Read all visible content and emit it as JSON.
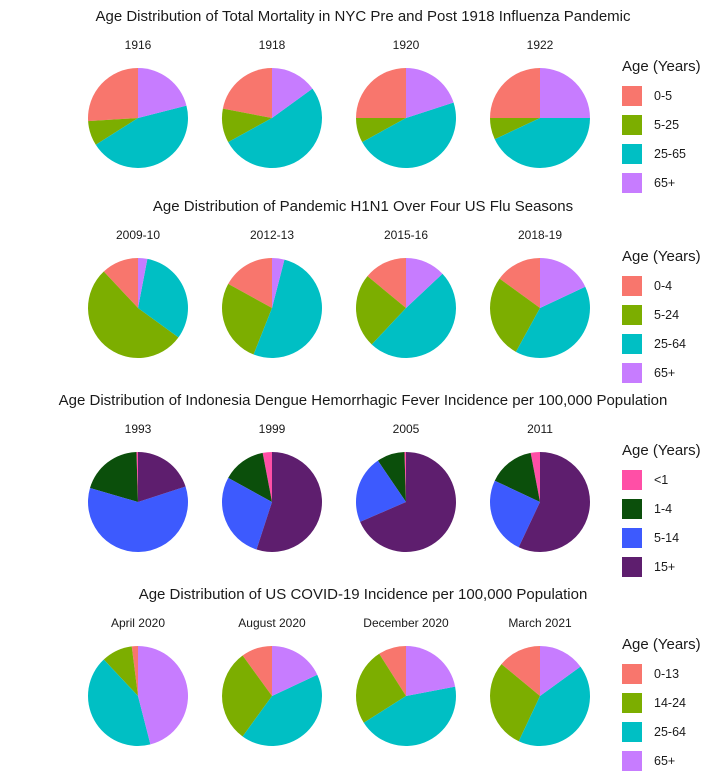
{
  "chart_data": [
    {
      "type": "pie",
      "title": "Age Distribution of Total Mortality in NYC Pre and Post 1918 Influenza Pandemic",
      "legend_title": "Age (Years)",
      "categories": [
        "0-5",
        "5-25",
        "25-65",
        "65+"
      ],
      "colors": [
        "#F8766D",
        "#7CAE00",
        "#00BFC4",
        "#C77CFF"
      ],
      "legend_position": "right",
      "pies": [
        {
          "label": "1916",
          "values": [
            26,
            8,
            45,
            21
          ]
        },
        {
          "label": "1918",
          "values": [
            22,
            11,
            52,
            15
          ]
        },
        {
          "label": "1920",
          "values": [
            25,
            8,
            47,
            20
          ]
        },
        {
          "label": "1922",
          "values": [
            25,
            7,
            43,
            25
          ]
        }
      ]
    },
    {
      "type": "pie",
      "title": "Age Distribution of Pandemic H1N1 Over Four US Flu Seasons",
      "legend_title": "Age (Years)",
      "categories": [
        "0-4",
        "5-24",
        "25-64",
        "65+"
      ],
      "colors": [
        "#F8766D",
        "#7CAE00",
        "#00BFC4",
        "#C77CFF"
      ],
      "legend_position": "right",
      "pies": [
        {
          "label": "2009-10",
          "values": [
            12,
            53,
            32,
            3
          ]
        },
        {
          "label": "2012-13",
          "values": [
            17,
            27,
            52,
            4
          ]
        },
        {
          "label": "2015-16",
          "values": [
            14,
            24,
            49,
            13
          ]
        },
        {
          "label": "2018-19",
          "values": [
            15,
            27,
            40,
            18
          ]
        }
      ]
    },
    {
      "type": "pie",
      "title": "Age Distribution of Indonesia Dengue Hemorrhagic Fever Incidence per 100,000 Population",
      "legend_title": "Age (Years)",
      "categories": [
        "<1",
        "1-4",
        "5-14",
        "15+"
      ],
      "colors": [
        "#FF4FA6",
        "#0B4F0B",
        "#3D5AFE",
        "#5E1E6E"
      ],
      "legend_position": "right",
      "pies": [
        {
          "label": "1993",
          "values": [
            0.5,
            20,
            59.5,
            20
          ]
        },
        {
          "label": "1999",
          "values": [
            3,
            14,
            28,
            55
          ]
        },
        {
          "label": "2005",
          "values": [
            0.5,
            9,
            22,
            68.5
          ]
        },
        {
          "label": "2011",
          "values": [
            3,
            15,
            25,
            57
          ]
        }
      ]
    },
    {
      "type": "pie",
      "title": "Age Distribution of US COVID-19 Incidence per 100,000 Population",
      "legend_title": "Age (Years)",
      "categories": [
        "0-13",
        "14-24",
        "25-64",
        "65+"
      ],
      "colors": [
        "#F8766D",
        "#7CAE00",
        "#00BFC4",
        "#C77CFF"
      ],
      "legend_position": "right",
      "pies": [
        {
          "label": "April 2020",
          "values": [
            2,
            10,
            42,
            46
          ]
        },
        {
          "label": "August 2020",
          "values": [
            10,
            30,
            42,
            18
          ]
        },
        {
          "label": "December 2020",
          "values": [
            9,
            25,
            44,
            22
          ]
        },
        {
          "label": "March 2021",
          "values": [
            14,
            29,
            42,
            15
          ]
        }
      ]
    }
  ]
}
